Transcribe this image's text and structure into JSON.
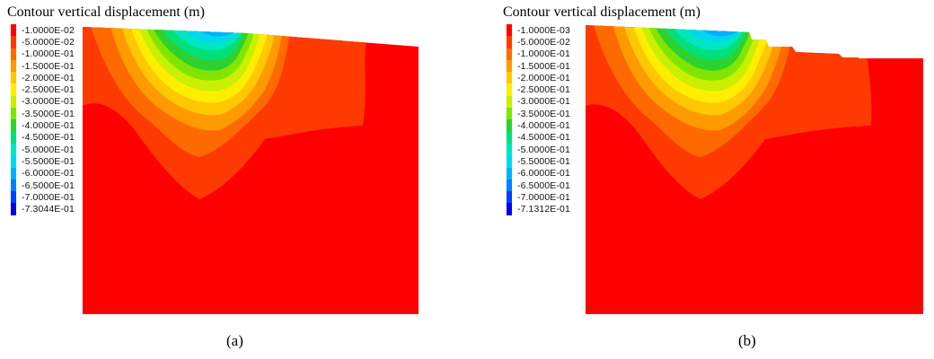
{
  "panels": [
    {
      "title": "Contour vertical displacement (m)",
      "caption": "(a)",
      "legend": [
        {
          "label": "-1.0000E-02",
          "color": "#ff0000"
        },
        {
          "label": "-5.0000E-02",
          "color": "#ff3a00"
        },
        {
          "label": "-1.0000E-01",
          "color": "#ff6a00"
        },
        {
          "label": "-1.5000E-01",
          "color": "#ff9a00"
        },
        {
          "label": "-2.0000E-01",
          "color": "#ffc800"
        },
        {
          "label": "-2.5000E-01",
          "color": "#ffee00"
        },
        {
          "label": "-3.0000E-01",
          "color": "#c8f000"
        },
        {
          "label": "-3.5000E-01",
          "color": "#80e600"
        },
        {
          "label": "-4.0000E-01",
          "color": "#2ed22e"
        },
        {
          "label": "-4.5000E-01",
          "color": "#00e07a"
        },
        {
          "label": "-5.0000E-01",
          "color": "#00e6c0"
        },
        {
          "label": "-5.5000E-01",
          "color": "#00d8f0"
        },
        {
          "label": "-6.0000E-01",
          "color": "#00b0ff"
        },
        {
          "label": "-6.5000E-01",
          "color": "#0080ff"
        },
        {
          "label": "-7.0000E-01",
          "color": "#0040ff"
        },
        {
          "label": "-7.3044E-01",
          "color": "#0000e6"
        }
      ]
    },
    {
      "title": "Contour vertical displacement (m)",
      "caption": "(b)",
      "legend": [
        {
          "label": "-1.0000E-03",
          "color": "#ff0000"
        },
        {
          "label": "-5.0000E-02",
          "color": "#ff3a00"
        },
        {
          "label": "-1.0000E-01",
          "color": "#ff6a00"
        },
        {
          "label": "-1.5000E-01",
          "color": "#ff9a00"
        },
        {
          "label": "-2.0000E-01",
          "color": "#ffc800"
        },
        {
          "label": "-2.5000E-01",
          "color": "#ffee00"
        },
        {
          "label": "-3.0000E-01",
          "color": "#c8f000"
        },
        {
          "label": "-3.5000E-01",
          "color": "#80e600"
        },
        {
          "label": "-4.0000E-01",
          "color": "#2ed22e"
        },
        {
          "label": "-4.5000E-01",
          "color": "#00e07a"
        },
        {
          "label": "-5.0000E-01",
          "color": "#00e6c0"
        },
        {
          "label": "-5.5000E-01",
          "color": "#00d8f0"
        },
        {
          "label": "-6.0000E-01",
          "color": "#00b0ff"
        },
        {
          "label": "-6.5000E-01",
          "color": "#0080ff"
        },
        {
          "label": "-7.0000E-01",
          "color": "#0040ff"
        },
        {
          "label": "-7.1312E-01",
          "color": "#0000e6"
        }
      ]
    }
  ]
}
